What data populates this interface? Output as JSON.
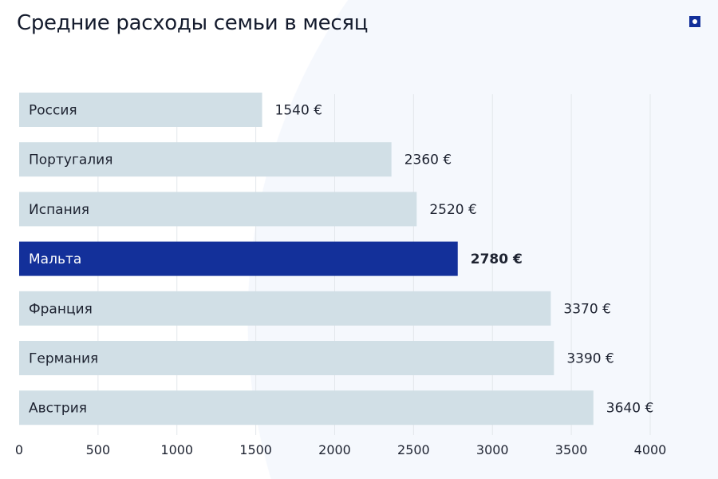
{
  "title": "Средние расходы семьи в месяц",
  "logo_icon": "brand-square-dot-icon",
  "colors": {
    "bar": "#d1dfe6",
    "highlight": "#13309a",
    "text": "#1d2230",
    "grid": "#e3e7ec"
  },
  "chart_data": {
    "type": "bar",
    "orientation": "horizontal",
    "title": "Средние расходы семьи в месяц",
    "categories": [
      "Россия",
      "Португалия",
      "Испания",
      "Мальта",
      "Франция",
      "Германия",
      "Австрия"
    ],
    "values": [
      1540,
      2360,
      2520,
      2780,
      3370,
      3390,
      3640
    ],
    "value_labels": [
      "1540 €",
      "2360 €",
      "2520 €",
      "2780 €",
      "3370 €",
      "3390 €",
      "3640 €"
    ],
    "highlight": "Мальта",
    "xlim": [
      0,
      4000
    ],
    "xticks": [
      0,
      500,
      1000,
      1500,
      2000,
      2500,
      3000,
      3500,
      4000
    ],
    "xtick_labels": [
      "0",
      "500",
      "1000",
      "1500",
      "2000",
      "2500",
      "3000",
      "3500",
      "4000"
    ],
    "grid": "vertical",
    "legend": "none"
  }
}
